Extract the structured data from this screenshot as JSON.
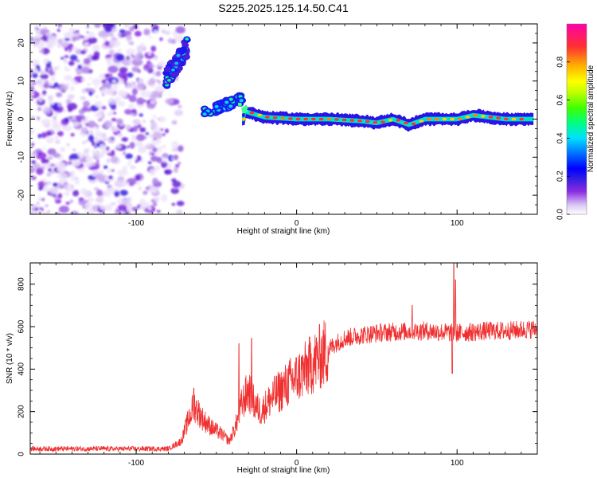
{
  "chart_data": [
    {
      "type": "heatmap",
      "title": "S225.2025.125.14.50.C41",
      "xlabel": "Height of straight line (km)",
      "ylabel": "Frequency (Hz)",
      "xlim": [
        -166,
        150
      ],
      "ylim": [
        -25,
        25
      ],
      "x_ticks": [
        -100,
        0,
        100
      ],
      "y_ticks": [
        -20,
        -10,
        0,
        10,
        20
      ],
      "colorbar": {
        "label": "Normalized spectral amplitude",
        "range": [
          0,
          1
        ],
        "ticks": [
          0.0,
          0.2,
          0.4,
          0.6,
          0.8
        ],
        "colors": [
          "#ffffff",
          "#d9c6f4",
          "#8a2be2",
          "#3a1fe0",
          "#0000ff",
          "#0080ff",
          "#00e0ff",
          "#00ff80",
          "#40ff00",
          "#c0ff00",
          "#ffff00",
          "#ffb000",
          "#ff3030",
          "#ff00aa"
        ]
      },
      "features": {
        "noise_region_x": [
          -166,
          -78
        ],
        "ridge_segments": [
          {
            "x": [
              -82,
              -68
            ],
            "y": [
              10,
              19
            ],
            "amplitude": 0.4
          },
          {
            "x": [
              -58,
              -34
            ],
            "y": [
              2,
              6
            ],
            "amplitude": 0.35
          },
          {
            "x": [
              -34,
              148
            ],
            "y": [
              -1,
              1
            ],
            "amplitude": 0.9
          }
        ],
        "ridge_center_y": [
          [
            -32,
            2
          ],
          [
            -20,
            0.5
          ],
          [
            0,
            0
          ],
          [
            20,
            0
          ],
          [
            40,
            -0.5
          ],
          [
            50,
            -1
          ],
          [
            60,
            0
          ],
          [
            70,
            -1.5
          ],
          [
            80,
            0
          ],
          [
            100,
            0
          ],
          [
            110,
            1
          ],
          [
            130,
            0
          ],
          [
            148,
            0
          ]
        ]
      }
    },
    {
      "type": "line",
      "title": "",
      "xlabel": "Height of straight line (km)",
      "ylabel": "SNR (10 * v/v)",
      "xlim": [
        -166,
        150
      ],
      "ylim": [
        0,
        900
      ],
      "x_ticks": [
        -100,
        0,
        100
      ],
      "y_ticks": [
        0,
        200,
        400,
        600,
        800
      ],
      "color": "#f03030",
      "envelope": [
        [
          -166,
          25
        ],
        [
          -80,
          25
        ],
        [
          -72,
          60
        ],
        [
          -68,
          150
        ],
        [
          -64,
          230
        ],
        [
          -58,
          160
        ],
        [
          -52,
          120
        ],
        [
          -46,
          90
        ],
        [
          -42,
          60
        ],
        [
          -38,
          130
        ],
        [
          -34,
          240
        ],
        [
          -30,
          300
        ],
        [
          -26,
          230
        ],
        [
          -22,
          200
        ],
        [
          -16,
          260
        ],
        [
          -10,
          300
        ],
        [
          -4,
          340
        ],
        [
          0,
          360
        ],
        [
          6,
          400
        ],
        [
          12,
          440
        ],
        [
          18,
          480
        ],
        [
          24,
          520
        ],
        [
          30,
          545
        ],
        [
          40,
          560
        ],
        [
          50,
          570
        ],
        [
          60,
          575
        ],
        [
          70,
          578
        ],
        [
          80,
          580
        ],
        [
          90,
          575
        ],
        [
          100,
          570
        ],
        [
          110,
          575
        ],
        [
          120,
          580
        ],
        [
          130,
          580
        ],
        [
          140,
          585
        ],
        [
          150,
          590
        ]
      ],
      "spikes": [
        {
          "x": -64,
          "y": 310
        },
        {
          "x": -36,
          "y": 520
        },
        {
          "x": -28,
          "y": 545
        },
        {
          "x": 72,
          "y": 700
        },
        {
          "x": 98,
          "y": 900
        },
        {
          "x": 99,
          "y": 820
        },
        {
          "x": 97,
          "y": 380
        }
      ]
    }
  ]
}
